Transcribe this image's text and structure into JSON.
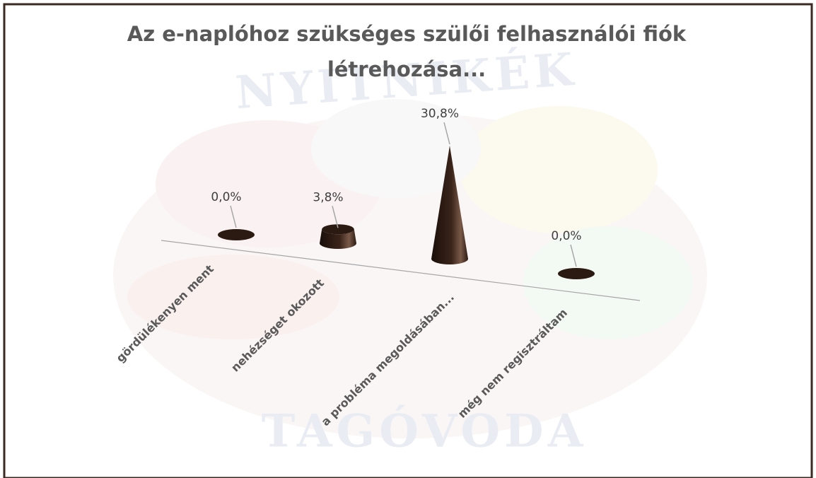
{
  "title_lines": [
    "Az e-naplóhoz szükséges szülői felhasználói fiók",
    "létrehozása..."
  ],
  "watermark": [
    "NYITNIKÉK",
    "TAGÓVODA"
  ],
  "chart_data": {
    "type": "cone",
    "categories": [
      "gördülékenyen ment",
      "nehézséget okozott",
      "a probléma megoldásában...",
      "még nem regisztráltam"
    ],
    "values": [
      0.0,
      3.8,
      30.8,
      0.0
    ],
    "value_labels": [
      "0,0%",
      "3,8%",
      "30,8%",
      "0,0%"
    ],
    "color": "#2b1a12"
  }
}
